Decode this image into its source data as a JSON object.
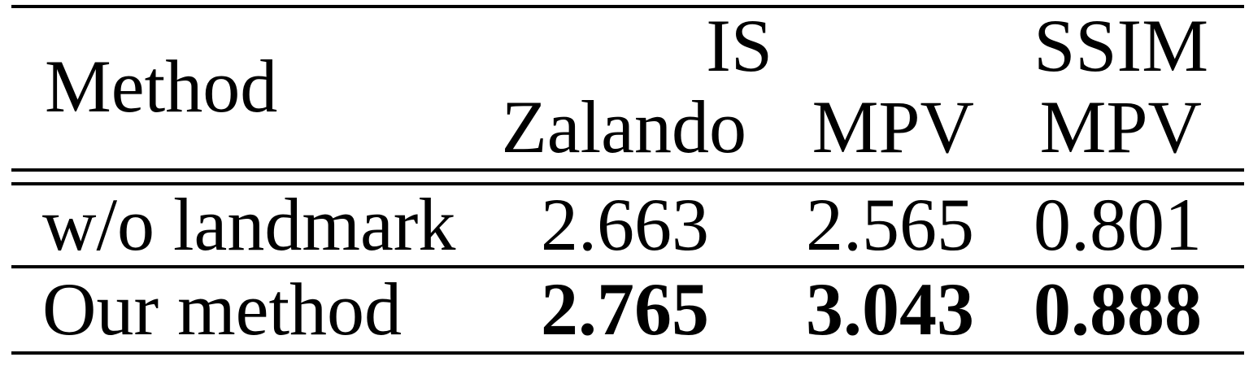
{
  "table": {
    "header": {
      "method_label": "Method",
      "group_is": "IS",
      "group_ssim": "SSIM",
      "sub_zalando": "Zalando",
      "sub_is_mpv": "MPV",
      "sub_ssim_mpv": "MPV"
    },
    "rows": [
      {
        "method": "w/o landmark",
        "zalando": "2.663",
        "mpv": "2.565",
        "ssim": "0.801"
      },
      {
        "method": "Our method",
        "zalando": "2.765",
        "mpv": "3.043",
        "ssim": "0.888"
      }
    ]
  }
}
